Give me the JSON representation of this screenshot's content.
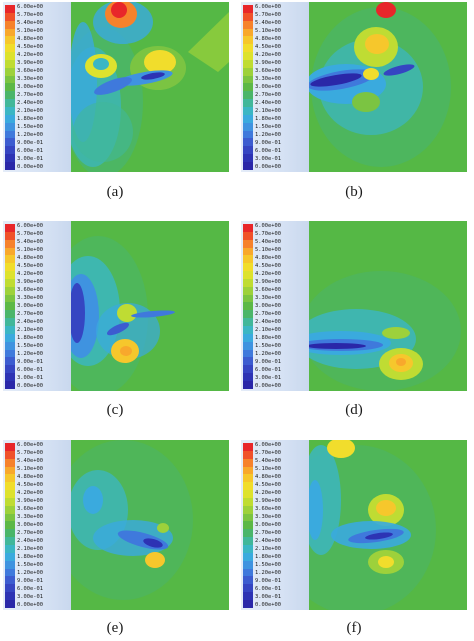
{
  "legend": {
    "levels": [
      "6.00e+00",
      "5.70e+00",
      "5.40e+00",
      "5.10e+00",
      "4.80e+00",
      "4.50e+00",
      "4.20e+00",
      "3.90e+00",
      "3.60e+00",
      "3.30e+00",
      "3.00e+00",
      "2.70e+00",
      "2.40e+00",
      "2.10e+00",
      "1.80e+00",
      "1.50e+00",
      "1.20e+00",
      "9.00e-01",
      "6.00e-01",
      "3.00e-01",
      "0.00e+00"
    ],
    "colors": [
      "#e8262a",
      "#f0512a",
      "#f6822c",
      "#f8a82c",
      "#f6c72c",
      "#f1dd2c",
      "#dde22e",
      "#bfdc33",
      "#9dd13b",
      "#7bc442",
      "#5cb847",
      "#4ab56a",
      "#41b79a",
      "#3bb6c4",
      "#3aaade",
      "#3f93e0",
      "#3f79dc",
      "#3c5cd0",
      "#3545c2",
      "#2d33b4",
      "#2a27a8"
    ]
  },
  "panels": [
    {
      "id": "a",
      "caption": "(a)"
    },
    {
      "id": "b",
      "caption": "(b)"
    },
    {
      "id": "c",
      "caption": "(c)"
    },
    {
      "id": "d",
      "caption": "(d)"
    },
    {
      "id": "e",
      "caption": "(e)"
    },
    {
      "id": "f",
      "caption": "(f)"
    }
  ]
}
